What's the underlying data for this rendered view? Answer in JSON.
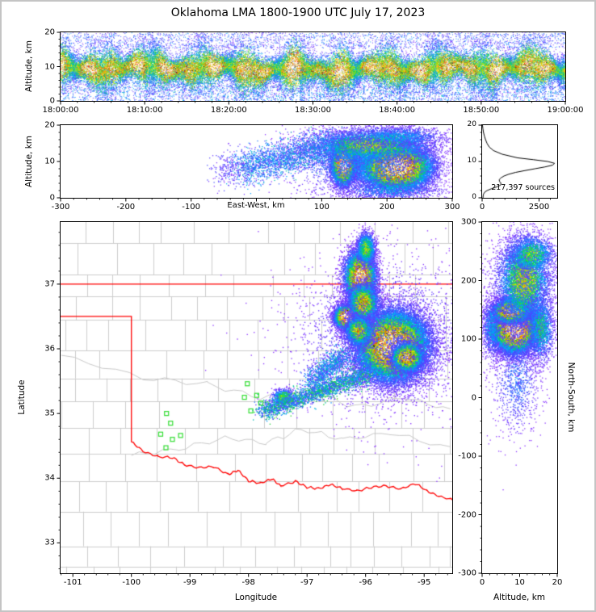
{
  "title": "Oklahoma LMA 1800-1900 UTC July 17, 2023",
  "colors": {
    "density_scale": [
      "#9632ff",
      "#4646ff",
      "#00aaff",
      "#00cd5a",
      "#a0e100",
      "#ffe100",
      "#ff8c00",
      "#ff1919"
    ],
    "density_thresholds": [
      0,
      0.14,
      0.3,
      0.44,
      0.57,
      0.68,
      0.78,
      0.88
    ],
    "core_gray_min": "#141414",
    "core_gray_max": "#ffffff",
    "boundary": "#ff0000",
    "county": "#cccccc",
    "river": "#c8c8c8",
    "station": "#33dd33",
    "axis": "#000000",
    "background": "#ffffff",
    "frame": "#c4c4c4"
  },
  "chart_data": [
    {
      "id": "time_height_panel",
      "type": "heatmap",
      "ylabel": "Altitude, km",
      "ylim": [
        0,
        20
      ],
      "y_ticks": [
        0,
        10,
        20
      ],
      "y_minor_step": 2,
      "xlim_seconds": [
        0,
        3600
      ],
      "x_tick_seconds": [
        0,
        600,
        1200,
        1800,
        2400,
        3000,
        3600
      ],
      "x_tick_labels": [
        "18:00:00",
        "18:10:00",
        "18:20:00",
        "18:30:00",
        "18:40:00",
        "18:50:00",
        "19:00:00"
      ],
      "x_minor_step_seconds": 120,
      "band": {
        "n": 52000,
        "center_km": 9.4,
        "center_wobble_km": 1.5,
        "halfwidth_km": 3.3,
        "halfwidth_var": 0.45,
        "streak_prob": 0.012,
        "top_scatter_n": 2200,
        "bottom_scatter_n": 1300
      }
    },
    {
      "id": "east_west_cross_section",
      "type": "scatter_density",
      "xlabel": "East-West, km",
      "ylabel": "Altitude, km",
      "xlim": [
        -300,
        300
      ],
      "ylim": [
        0,
        20
      ],
      "x_ticks": [
        -300,
        -200,
        -100,
        0,
        100,
        200,
        300
      ],
      "x_tick_labels": [
        "-300",
        "-200",
        "-100",
        "",
        "100",
        "200",
        "300"
      ],
      "x_minor_step": 20,
      "y_ticks": [
        0,
        10,
        20
      ],
      "y_minor_step": 2,
      "clusters": [
        {
          "cx": 133,
          "cy": 9.5,
          "sx": 9,
          "sy": 2.9,
          "n": 8000,
          "peak": 1.08
        },
        {
          "cx": 213,
          "cy": 8.6,
          "sx": 27,
          "sy": 3.1,
          "n": 20000,
          "peak": 1.04
        },
        {
          "cx": 175,
          "cy": 14.5,
          "sx": 48,
          "sy": 2.3,
          "n": 5000,
          "peak": 0.55
        },
        {
          "cx": 205,
          "cy": 2.2,
          "sx": 42,
          "sy": 1.4,
          "n": 700,
          "peak": 0.3
        },
        {
          "cx": 215,
          "cy": 17.0,
          "sx": 38,
          "sy": 1.4,
          "n": 1200,
          "peak": 0.3
        },
        {
          "cx": 160,
          "cy": 9.5,
          "sx": 55,
          "sy": 5,
          "n": 2500,
          "peak": 0.25
        }
      ],
      "trails": [
        {
          "x1": 115,
          "y1": 14.5,
          "x2": -25,
          "y2": 8.0,
          "jx": 14,
          "jy": 2.4,
          "n": 2200,
          "peak": 0.34
        },
        {
          "x1": -25,
          "y1": 8.5,
          "x2": -60,
          "y2": 7.5,
          "jx": 10,
          "jy": 2.6,
          "n": 220,
          "peak": 0.14
        }
      ]
    },
    {
      "id": "altitude_histogram",
      "type": "line",
      "annotation": "217,397 sources",
      "xlim": [
        0,
        3300
      ],
      "x_ticks": [
        0,
        2500
      ],
      "x_minor_step": 500,
      "ylim": [
        0,
        20
      ],
      "y_ticks": [
        0,
        10,
        20
      ],
      "y_minor_step": 2,
      "profile": {
        "alt_km": [
          20,
          19,
          18,
          17,
          16,
          15,
          14,
          13,
          12,
          11,
          10.5,
          10,
          9.5,
          9,
          8.5,
          8,
          7.5,
          7,
          6.5,
          6,
          5.5,
          5,
          4.5,
          4,
          3.5,
          3,
          2.5,
          2,
          1.5,
          1,
          0.5,
          0
        ],
        "counts": [
          15,
          35,
          60,
          100,
          150,
          215,
          310,
          500,
          880,
          1560,
          2250,
          2880,
          3180,
          3100,
          2760,
          2320,
          1880,
          1470,
          1170,
          960,
          830,
          750,
          765,
          830,
          810,
          640,
          410,
          215,
          105,
          60,
          45,
          38
        ]
      }
    },
    {
      "id": "plan_view_map",
      "type": "scatter_density",
      "xlabel": "Longitude",
      "ylabel": "Latitude",
      "xlim": [
        -101.21,
        -94.52
      ],
      "ylim": [
        32.53,
        37.96
      ],
      "x_ticks": [
        -101,
        -100,
        -99,
        -98,
        -97,
        -96,
        -95
      ],
      "x_minor_step": 0.2,
      "y_ticks": [
        33,
        34,
        35,
        36,
        37
      ],
      "y_minor_step": 0.2,
      "boundary": {
        "north_border_lat": 37.0,
        "panhandle_south_lat": 36.5,
        "panhandle_east_lon": -100.0,
        "red_river": [
          [
            -100,
            34.56
          ],
          [
            -99.8,
            34.42
          ],
          [
            -99.55,
            34.33
          ],
          [
            -99.3,
            34.32
          ],
          [
            -99.1,
            34.21
          ],
          [
            -98.85,
            34.16
          ],
          [
            -98.6,
            34.18
          ],
          [
            -98.35,
            34.06
          ],
          [
            -98.18,
            34.12
          ],
          [
            -98.0,
            33.96
          ],
          [
            -97.8,
            33.92
          ],
          [
            -97.6,
            33.99
          ],
          [
            -97.45,
            33.88
          ],
          [
            -97.2,
            33.95
          ],
          [
            -97.0,
            33.86
          ],
          [
            -96.8,
            33.84
          ],
          [
            -96.6,
            33.9
          ],
          [
            -96.4,
            33.84
          ],
          [
            -96.15,
            33.8
          ],
          [
            -95.9,
            33.86
          ],
          [
            -95.65,
            33.88
          ],
          [
            -95.4,
            33.83
          ],
          [
            -95.15,
            33.92
          ],
          [
            -94.95,
            33.8
          ],
          [
            -94.75,
            33.72
          ],
          [
            -94.5,
            33.66
          ]
        ]
      },
      "rivers": [
        [
          [
            -101.2,
            35.9
          ],
          [
            -99.8,
            35.55
          ],
          [
            -98.7,
            35.45
          ],
          [
            -97.8,
            35.25
          ],
          [
            -96.9,
            35.35
          ],
          [
            -96.2,
            35.1
          ],
          [
            -95.3,
            35.25
          ],
          [
            -94.55,
            35.05
          ]
        ],
        [
          [
            -100.0,
            34.35
          ],
          [
            -99.2,
            34.45
          ],
          [
            -98.4,
            34.62
          ],
          [
            -97.7,
            34.55
          ],
          [
            -97.1,
            34.75
          ],
          [
            -96.4,
            34.6
          ],
          [
            -95.6,
            34.7
          ],
          [
            -94.55,
            34.45
          ]
        ]
      ],
      "stations": [
        [
          -99.4,
          35.0
        ],
        [
          -99.33,
          34.85
        ],
        [
          -99.5,
          34.68
        ],
        [
          -99.3,
          34.6
        ],
        [
          -99.16,
          34.66
        ],
        [
          -99.41,
          34.47
        ],
        [
          -98.02,
          35.46
        ],
        [
          -98.07,
          35.25
        ],
        [
          -97.86,
          35.28
        ],
        [
          -97.79,
          35.16
        ],
        [
          -97.96,
          35.04
        ],
        [
          -97.38,
          35.29
        ]
      ],
      "clusters": [
        {
          "cx": -95.55,
          "cy": 36.05,
          "sx": 0.3,
          "sy": 0.26,
          "n": 26000,
          "peak": 1.02
        },
        {
          "cx": -95.3,
          "cy": 35.88,
          "sx": 0.13,
          "sy": 0.11,
          "n": 4000,
          "peak": 0.9
        },
        {
          "cx": -96.33,
          "cy": 36.5,
          "sx": 0.1,
          "sy": 0.09,
          "n": 5500,
          "peak": 1.1
        },
        {
          "cx": -96.1,
          "cy": 37.12,
          "sx": 0.13,
          "sy": 0.2,
          "n": 8000,
          "peak": 0.95
        },
        {
          "cx": -96.0,
          "cy": 37.55,
          "sx": 0.08,
          "sy": 0.13,
          "n": 1600,
          "peak": 0.55
        },
        {
          "cx": -96.05,
          "cy": 36.72,
          "sx": 0.13,
          "sy": 0.15,
          "n": 3500,
          "peak": 0.7
        },
        {
          "cx": -96.12,
          "cy": 36.28,
          "sx": 0.12,
          "sy": 0.12,
          "n": 2500,
          "peak": 0.65
        },
        {
          "cx": -97.42,
          "cy": 35.25,
          "sx": 0.09,
          "sy": 0.07,
          "n": 550,
          "peak": 0.5
        },
        {
          "cx": -95.7,
          "cy": 36.2,
          "sx": 0.78,
          "sy": 0.62,
          "n": 2600,
          "peak": 0.16
        }
      ],
      "trails": [
        {
          "x1": -95.95,
          "y1": 35.62,
          "x2": -97.8,
          "y2": 35.03,
          "jx": 0.07,
          "jy": 0.07,
          "n": 2400,
          "peak": 0.45
        },
        {
          "x1": -96.35,
          "y1": 35.9,
          "x2": -96.95,
          "y2": 35.5,
          "jx": 0.09,
          "jy": 0.09,
          "n": 900,
          "peak": 0.35
        }
      ]
    },
    {
      "id": "north_south_cross_section",
      "type": "scatter_density",
      "xlabel": "Altitude, km",
      "ylabel": "North-South, km",
      "xlim": [
        0,
        20
      ],
      "ylim": [
        -300,
        300
      ],
      "x_ticks": [
        0,
        10,
        20
      ],
      "x_minor_step": 2,
      "y_ticks": [
        -300,
        -200,
        -100,
        0,
        100,
        200,
        300
      ],
      "y_minor_step": 20,
      "clusters": [
        {
          "cx": 8.6,
          "cy": 118,
          "sx": 3.0,
          "sy": 20,
          "n": 18000,
          "peak": 1.04
        },
        {
          "cx": 7.5,
          "cy": 148,
          "sx": 2.4,
          "sy": 10,
          "n": 5000,
          "peak": 0.95
        },
        {
          "cx": 11,
          "cy": 200,
          "sx": 3.4,
          "sy": 36,
          "n": 5500,
          "peak": 0.6
        },
        {
          "cx": 13,
          "cy": 245,
          "sx": 3.0,
          "sy": 16,
          "n": 1600,
          "peak": 0.5
        },
        {
          "cx": 15.5,
          "cy": 120,
          "sx": 1.8,
          "sy": 30,
          "n": 1500,
          "peak": 0.4
        },
        {
          "cx": 9,
          "cy": 30,
          "sx": 3.2,
          "sy": 45,
          "n": 900,
          "peak": 0.2
        },
        {
          "cx": 2.3,
          "cy": 120,
          "sx": 1.3,
          "sy": 28,
          "n": 500,
          "peak": 0.3
        },
        {
          "cx": 10,
          "cy": 160,
          "sx": 5,
          "sy": 60,
          "n": 1200,
          "peak": 0.2
        }
      ],
      "trails": []
    }
  ]
}
